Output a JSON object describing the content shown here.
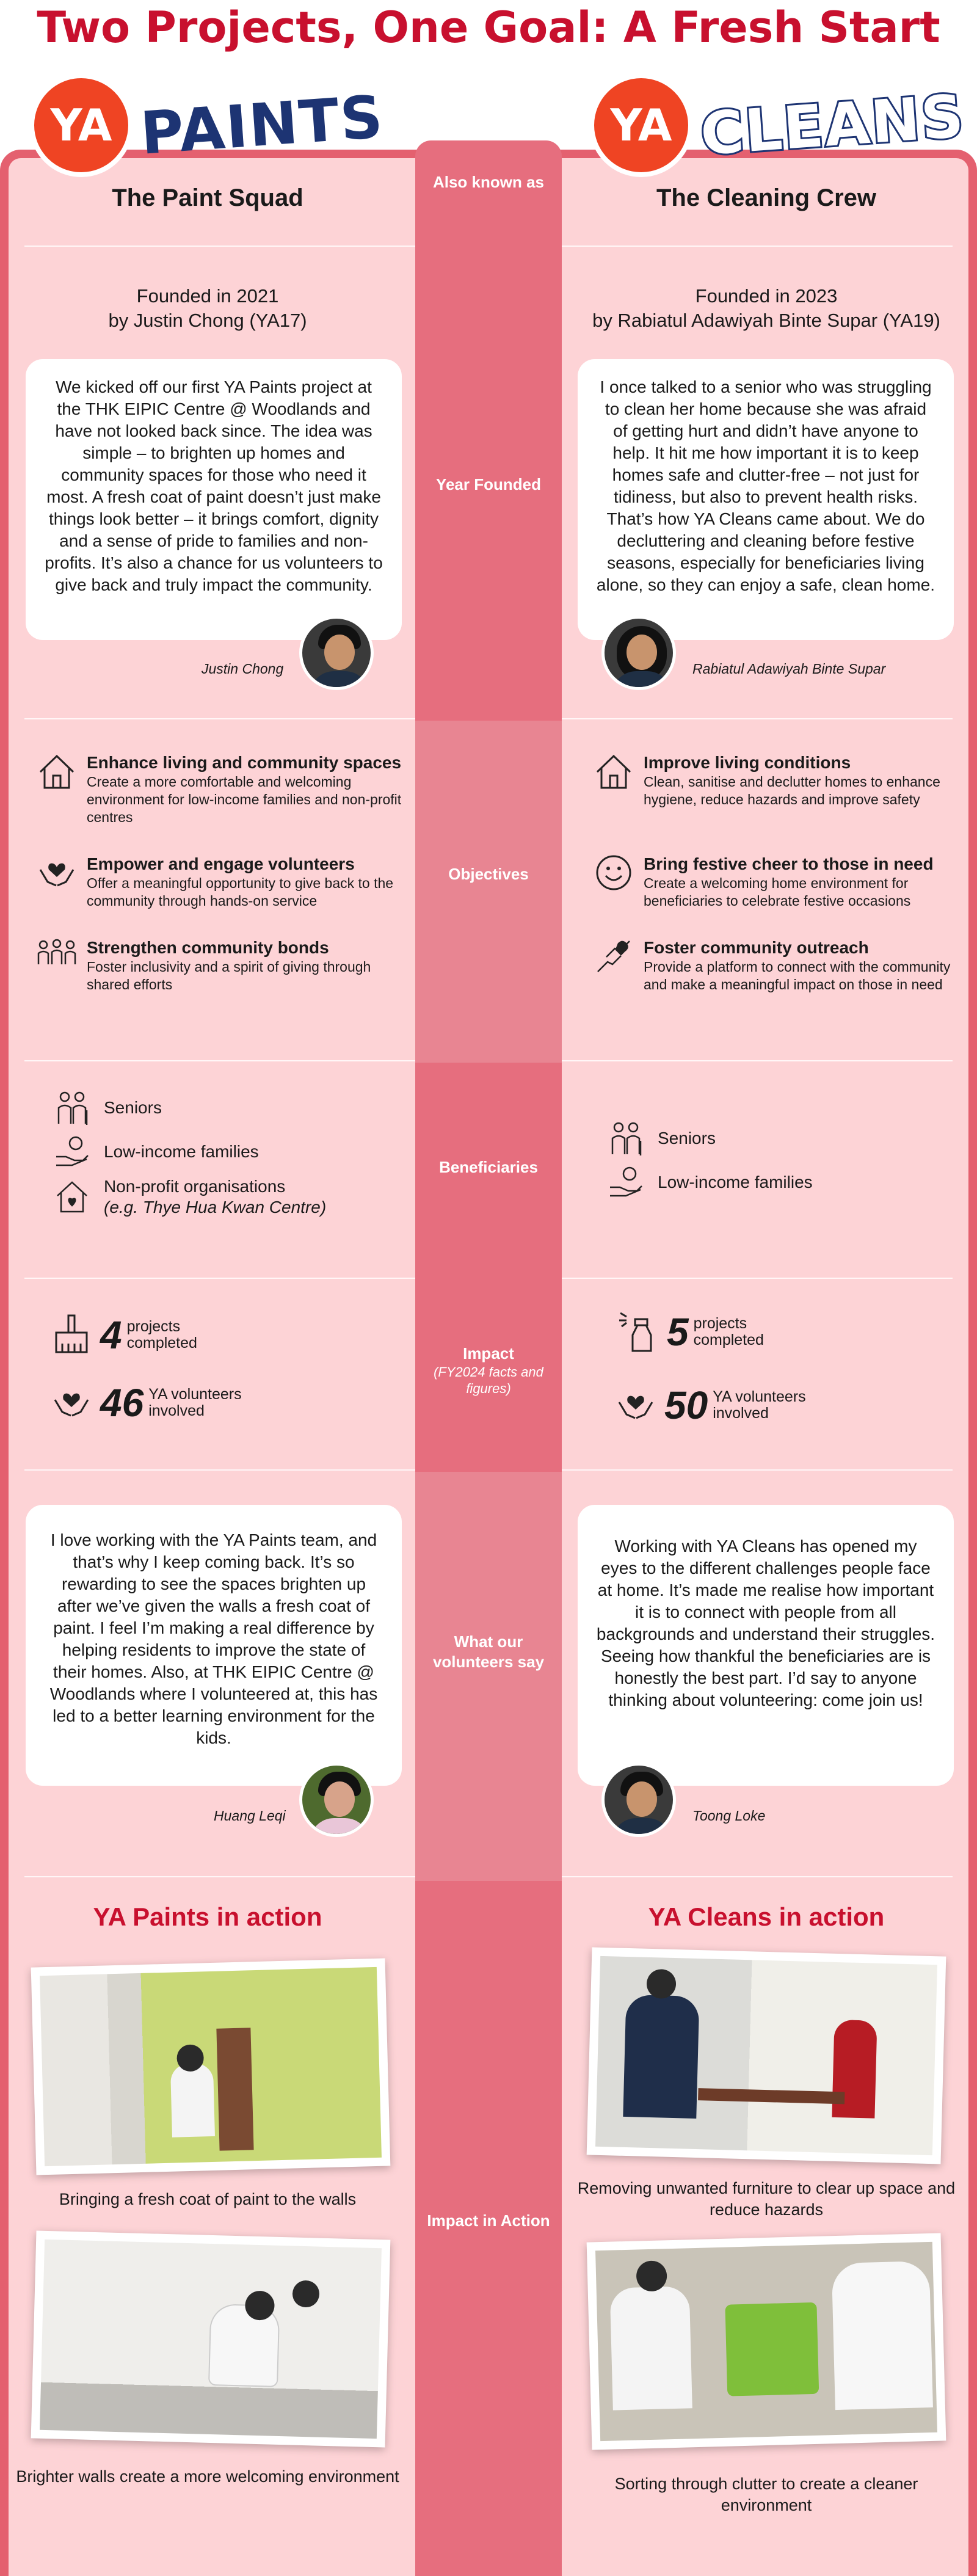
{
  "title": "Two Projects, One Goal: A Fresh Start",
  "logos": {
    "left": {
      "circle": "YA",
      "word": "PAINTS"
    },
    "right": {
      "circle": "YA",
      "word": "CLEANS"
    }
  },
  "rows": {
    "aka": {
      "label": "Also known as",
      "left": "The Paint Squad",
      "right": "The Cleaning Crew"
    },
    "founded": {
      "label": "Year Founded",
      "left": {
        "line1": "Founded in 2021",
        "line2": "by Justin Chong (YA17)",
        "quote": "We kicked off our first YA Paints project at the THK EIPIC Centre @ Woodlands and have not looked back since. The idea was simple – to brighten up homes and community spaces for those who need it most. A fresh coat of paint doesn’t just make things look better – it brings comfort, dignity and a sense of pride to families and non-profits. It’s also a chance for us volunteers to give back and truly impact the community.",
        "name": "Justin Chong"
      },
      "right": {
        "line1": "Founded in 2023",
        "line2": "by Rabiatul Adawiyah Binte Supar (YA19)",
        "quote": "I once talked to a senior who was struggling to clean her home because she was afraid of getting hurt and didn’t have anyone to help. It hit me how important it is to keep homes safe and clutter-free – not just for tidiness, but also to prevent health risks. That’s how YA Cleans came about. We do decluttering and cleaning before festive seasons, especially for beneficiaries living alone, so they can enjoy a safe, clean home.",
        "name": "Rabiatul Adawiyah Binte Supar"
      }
    },
    "objectives": {
      "label": "Objectives",
      "left": [
        {
          "icon": "house-icon",
          "title": "Enhance living and community spaces",
          "desc": "Create a more comfortable and welcoming environment for low-income families and non-profit centres"
        },
        {
          "icon": "hands-heart-icon",
          "title": "Empower and engage volunteers",
          "desc": "Offer a meaningful opportunity to give back to the community through hands-on service"
        },
        {
          "icon": "community-icon",
          "title": "Strengthen community bonds",
          "desc": "Foster inclusivity and a spirit of giving through shared efforts"
        }
      ],
      "right": [
        {
          "icon": "house-icon",
          "title": "Improve living conditions",
          "desc": "Clean, sanitise and declutter homes to enhance hygiene, reduce hazards and improve safety"
        },
        {
          "icon": "smiley-icon",
          "title": "Bring festive cheer to those in need",
          "desc": "Create a welcoming home environment for beneficiaries to celebrate festive occasions"
        },
        {
          "icon": "outreach-icon",
          "title": "Foster community outreach",
          "desc": "Provide a platform to connect with the community and make a meaningful impact on those in need"
        }
      ]
    },
    "beneficiaries": {
      "label": "Beneficiaries",
      "left": [
        {
          "icon": "seniors-icon",
          "text": "Seniors",
          "note": ""
        },
        {
          "icon": "hand-coin-icon",
          "text": "Low-income families",
          "note": ""
        },
        {
          "icon": "nonprofit-icon",
          "text": "Non-profit organisations",
          "note": "(e.g. Thye Hua Kwan Centre)"
        }
      ],
      "right": [
        {
          "icon": "seniors-icon",
          "text": "Seniors",
          "note": ""
        },
        {
          "icon": "hand-coin-icon",
          "text": "Low-income families",
          "note": ""
        }
      ]
    },
    "impact": {
      "label": "Impact",
      "sub": "(FY2024 facts and figures)",
      "left": [
        {
          "icon": "paint-brush-icon",
          "num": "4",
          "l1": "projects",
          "l2": "completed"
        },
        {
          "icon": "hands-heart-icon",
          "num": "46",
          "l1": "YA volunteers",
          "l2": "involved"
        }
      ],
      "right": [
        {
          "icon": "spray-bottle-icon",
          "num": "5",
          "l1": "projects",
          "l2": "completed"
        },
        {
          "icon": "hands-heart-icon",
          "num": "50",
          "l1": "YA volunteers",
          "l2": "involved"
        }
      ]
    },
    "say": {
      "label": "What our volunteers say",
      "left": {
        "quote": "I love working with the YA Paints team, and that’s why I keep coming back. It’s so rewarding to see the spaces brighten up after we’ve given the walls a fresh coat of paint. I feel I’m making a real difference by helping residents to improve the state of their homes. Also, at THK EIPIC Centre @ Woodlands where I volunteered at, this has led to a better learning environment for the kids.",
        "name": "Huang Leqi"
      },
      "right": {
        "quote": "Working with YA Cleans has opened my eyes to the different challenges people face at home. It’s made me realise how important it is to connect with people from all backgrounds and understand their struggles. Seeing how thankful the beneficiaries are is honestly the best part. I’d say to anyone thinking about volunteering: come join us!",
        "name": "Toong Loke"
      }
    },
    "action": {
      "label": "Impact in Action",
      "left": {
        "title": "YA Paints in action",
        "captions": [
          "Bringing a fresh coat of paint to the walls",
          "Brighter walls create a more welcoming environment"
        ]
      },
      "right": {
        "title": "YA Cleans in action",
        "captions": [
          "Removing unwanted furniture to clear up space and reduce hazards",
          "Sorting through clutter to create a cleaner environment"
        ]
      }
    }
  }
}
